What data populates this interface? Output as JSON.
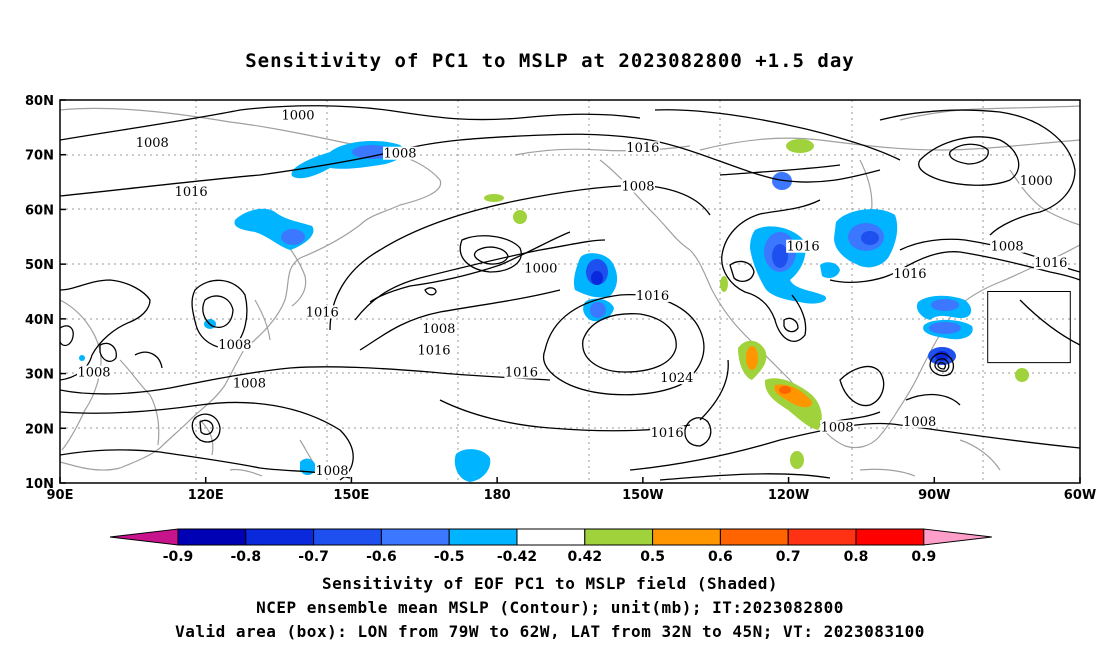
{
  "title": "Sensitivity of PC1 to MSLP at 2023082800 +1.5 day",
  "footer": {
    "line1": "Sensitivity of EOF PC1 to MSLP field (Shaded)",
    "line2": "NCEP ensemble mean MSLP (Contour); unit(mb); IT:2023082800",
    "line3": "Valid area (box): LON from 79W to 62W, LAT from 32N to 45N; VT: 2023083100"
  },
  "map": {
    "lon_range": [
      90,
      300
    ],
    "lat_range": [
      10,
      80
    ],
    "lon_ticks": [
      "90E",
      "120E",
      "150E",
      "180",
      "150W",
      "120W",
      "90W",
      "60W"
    ],
    "lat_ticks": [
      "10N",
      "20N",
      "30N",
      "40N",
      "50N",
      "60N",
      "70N",
      "80N"
    ],
    "grid": true,
    "valid_box": {
      "lon_w": -79,
      "lon_e": -62,
      "lat_s": 32,
      "lat_n": 45
    },
    "contour_labels": [
      {
        "text": "1000",
        "lon": 139,
        "lat": 77
      },
      {
        "text": "1008",
        "lon": 109,
        "lat": 72
      },
      {
        "text": "1008",
        "lon": 160,
        "lat": 70
      },
      {
        "text": "1016",
        "lon": 210,
        "lat": 71
      },
      {
        "text": "1008",
        "lon": 209,
        "lat": 64
      },
      {
        "text": "1000",
        "lon": 291,
        "lat": 65
      },
      {
        "text": "1016",
        "lon": 117,
        "lat": 63
      },
      {
        "text": "1000",
        "lon": 189,
        "lat": 49
      },
      {
        "text": "1016",
        "lon": 243,
        "lat": 53
      },
      {
        "text": "1008",
        "lon": 285,
        "lat": 53
      },
      {
        "text": "1016",
        "lon": 294,
        "lat": 50
      },
      {
        "text": "1016",
        "lon": 265,
        "lat": 48
      },
      {
        "text": "1016",
        "lon": 212,
        "lat": 44
      },
      {
        "text": "1016",
        "lon": 144,
        "lat": 41
      },
      {
        "text": "1008",
        "lon": 168,
        "lat": 38
      },
      {
        "text": "1016",
        "lon": 167,
        "lat": 34
      },
      {
        "text": "1008",
        "lon": 126,
        "lat": 35
      },
      {
        "text": "1008",
        "lon": 97,
        "lat": 30
      },
      {
        "text": "1008",
        "lon": 129,
        "lat": 28
      },
      {
        "text": "1016",
        "lon": 185,
        "lat": 30
      },
      {
        "text": "1024",
        "lon": 217,
        "lat": 29
      },
      {
        "text": "1016",
        "lon": 215,
        "lat": 19
      },
      {
        "text": "1008",
        "lon": 250,
        "lat": 20
      },
      {
        "text": "1008",
        "lon": 267,
        "lat": 21
      },
      {
        "text": "1008",
        "lon": 146,
        "lat": 12
      }
    ]
  },
  "colorbar": {
    "labels": [
      "-0.9",
      "-0.8",
      "-0.7",
      "-0.6",
      "-0.5",
      "-0.42",
      "0.42",
      "0.5",
      "0.6",
      "0.7",
      "0.8",
      "0.9"
    ],
    "colors": [
      "#0000b4",
      "#0a28dc",
      "#1e50f0",
      "#3c78ff",
      "#00b4ff",
      "#ffffff",
      "#a0d23c",
      "#ff9600",
      "#ff6400",
      "#ff3214",
      "#ff0000"
    ],
    "under_color": "#c8148c",
    "over_color": "#ff9ec8"
  },
  "colors": {
    "contour": "#000000",
    "coast": "#a0a0a0",
    "grid": "#999999"
  }
}
